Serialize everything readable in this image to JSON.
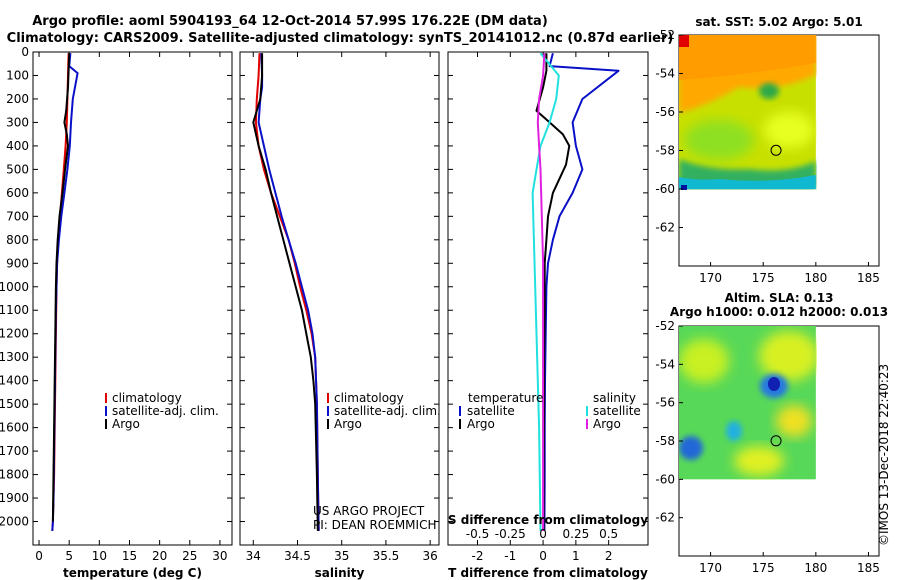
{
  "titles": {
    "line1": "Argo profile: aoml 5904193_64 12-Oct-2014 57.99S 176.22E (DM data)",
    "line2": "Climatology: CARS2009. Satellite-adjusted climatology: synTS_20141012.nc (0.87d earlier)"
  },
  "colors": {
    "climatology": "#e00000",
    "satellite": "#0a10c8",
    "argo": "#000000",
    "salinity_satellite": "#20e0e0",
    "salinity_argo": "#e020e0"
  },
  "chart_data": [
    {
      "type": "line",
      "id": "temperature",
      "xlabel": "temperature (deg C)",
      "ylabel": "",
      "xlim": [
        -1,
        32
      ],
      "ylim": [
        2100,
        0
      ],
      "xticks": [
        "0",
        "5",
        "10",
        "15",
        "20",
        "25",
        "30"
      ],
      "xtick_values": [
        0,
        5,
        10,
        15,
        20,
        25,
        30
      ],
      "yticks": [
        "0",
        "100",
        "200",
        "300",
        "400",
        "500",
        "600",
        "700",
        "800",
        "900",
        "1000",
        "1100",
        "1200",
        "1300",
        "1400",
        "1500",
        "1600",
        "1700",
        "1800",
        "1900",
        "2000"
      ],
      "ytick_values": [
        0,
        100,
        200,
        300,
        400,
        500,
        600,
        700,
        800,
        900,
        1000,
        1100,
        1200,
        1300,
        1400,
        1500,
        1600,
        1700,
        1800,
        1900,
        2000
      ],
      "legend": [
        "climatology",
        "satellite-adj. clim.",
        "Argo"
      ],
      "series": [
        {
          "name": "climatology",
          "color_key": "climatology",
          "x": [
            4.9,
            4.8,
            4.7,
            4.6,
            4.4,
            4.1,
            3.8,
            3.5,
            3.2,
            3.0,
            2.9,
            2.8,
            2.7,
            2.6,
            2.5,
            2.4,
            2.3,
            2.2
          ],
          "y": [
            5,
            100,
            200,
            300,
            400,
            500,
            600,
            700,
            800,
            900,
            1000,
            1200,
            1400,
            1600,
            1800,
            1900,
            2000,
            2040
          ]
        },
        {
          "name": "satellite-adj. clim.",
          "color_key": "satellite",
          "x": [
            5.2,
            5.0,
            6.4,
            5.6,
            5.3,
            5.1,
            4.7,
            4.2,
            3.7,
            3.3,
            3.0,
            2.8,
            2.7,
            2.6,
            2.5,
            2.4,
            2.3,
            2.2
          ],
          "y": [
            5,
            60,
            90,
            200,
            300,
            400,
            500,
            600,
            700,
            800,
            900,
            1100,
            1300,
            1500,
            1700,
            1900,
            2000,
            2040
          ]
        },
        {
          "name": "Argo",
          "color_key": "argo",
          "x": [
            5.0,
            4.9,
            4.8,
            4.5,
            4.2,
            4.6,
            4.8,
            4.4,
            3.9,
            3.4,
            3.1,
            2.9,
            2.8,
            2.7,
            2.6,
            2.5,
            2.4,
            2.3
          ],
          "y": [
            5,
            80,
            150,
            250,
            300,
            350,
            400,
            480,
            600,
            700,
            800,
            900,
            1000,
            1200,
            1400,
            1600,
            1800,
            2000
          ]
        }
      ]
    },
    {
      "type": "line",
      "id": "salinity",
      "xlabel": "salinity",
      "ylabel": "",
      "xlim": [
        33.85,
        36.1
      ],
      "ylim": [
        2100,
        0
      ],
      "xticks": [
        "34",
        "34.5",
        "35",
        "35.5",
        "36"
      ],
      "xtick_values": [
        34,
        34.5,
        35,
        35.5,
        36
      ],
      "legend": [
        "climatology",
        "satellite-adj. clim.",
        "Argo"
      ],
      "series": [
        {
          "name": "climatology",
          "color_key": "climatology",
          "x": [
            34.07,
            34.06,
            34.04,
            34.03,
            34.06,
            34.12,
            34.2,
            34.3,
            34.4,
            34.47,
            34.53,
            34.6,
            34.66,
            34.7,
            34.72,
            34.73,
            34.74
          ],
          "y": [
            5,
            100,
            200,
            300,
            400,
            500,
            600,
            700,
            800,
            900,
            1000,
            1100,
            1200,
            1300,
            1500,
            1800,
            2040
          ]
        },
        {
          "name": "satellite-adj. clim.",
          "color_key": "satellite",
          "x": [
            34.09,
            34.1,
            34.1,
            34.08,
            34.06,
            34.12,
            34.18,
            34.25,
            34.32,
            34.4,
            34.48,
            34.55,
            34.62,
            34.67,
            34.7,
            34.72,
            34.73,
            34.74
          ],
          "y": [
            5,
            100,
            150,
            200,
            300,
            400,
            500,
            600,
            700,
            800,
            900,
            1000,
            1100,
            1200,
            1300,
            1500,
            1800,
            2040
          ]
        },
        {
          "name": "Argo",
          "color_key": "argo",
          "x": [
            34.1,
            34.1,
            34.08,
            34.0,
            34.06,
            34.14,
            34.2,
            34.27,
            34.34,
            34.41,
            34.48,
            34.55,
            34.6,
            34.65,
            34.68,
            34.7,
            34.72,
            34.73
          ],
          "y": [
            5,
            100,
            200,
            300,
            400,
            500,
            600,
            700,
            800,
            900,
            1000,
            1100,
            1200,
            1300,
            1400,
            1500,
            1800,
            2040
          ]
        }
      ],
      "annotations": [
        "US ARGO PROJECT",
        "PI: DEAN ROEMMICH"
      ]
    },
    {
      "type": "line",
      "id": "difference",
      "xlabel": "T difference from climatology",
      "ylabel": "",
      "xlim": [
        -2.9,
        3.2
      ],
      "ylim": [
        2100,
        0
      ],
      "xticks": [
        "-2",
        "-1",
        "0",
        "1",
        "2"
      ],
      "xtick_values": [
        -2,
        -1,
        0,
        1,
        2
      ],
      "top_axis_title": "S difference from climatology",
      "top_xticks": [
        "-0.5",
        "-0.25",
        "0",
        "0.25",
        "0.5"
      ],
      "top_xtick_values": [
        -0.5,
        -0.25,
        0,
        0.25,
        0.5
      ],
      "legend": {
        "temperature_heading": "temperature",
        "salinity_heading": "salinity",
        "temperature": [
          "satellite",
          "Argo"
        ],
        "salinity": [
          "satellite",
          "Argo"
        ]
      },
      "series": [
        {
          "name": "satellite",
          "group": "temperature",
          "axis": "T",
          "color_key": "satellite",
          "x": [
            0.3,
            0.2,
            2.3,
            1.2,
            0.9,
            1.0,
            1.2,
            0.9,
            0.5,
            0.3,
            0.15,
            0.1,
            0.08,
            0.06,
            0.05,
            0.05,
            0.04
          ],
          "y": [
            5,
            60,
            80,
            200,
            300,
            400,
            500,
            600,
            700,
            800,
            900,
            1000,
            1200,
            1400,
            1600,
            1800,
            2040
          ]
        },
        {
          "name": "Argo",
          "group": "temperature",
          "axis": "T",
          "color_key": "argo",
          "x": [
            0.1,
            0.1,
            0.0,
            -0.2,
            0.2,
            0.6,
            0.8,
            0.7,
            0.3,
            0.15,
            0.1,
            0.05,
            0.05,
            0.03,
            0.03,
            0.02,
            0.02
          ],
          "y": [
            5,
            80,
            150,
            250,
            300,
            350,
            400,
            480,
            600,
            700,
            800,
            900,
            1100,
            1300,
            1500,
            1800,
            2040
          ]
        },
        {
          "name": "satellite",
          "group": "salinity",
          "axis": "S",
          "color_key": "salinity_satellite",
          "x": [
            -0.02,
            0.12,
            0.1,
            0.05,
            -0.02,
            -0.05,
            -0.08,
            -0.07,
            -0.06,
            -0.05,
            -0.04,
            -0.03,
            -0.02
          ],
          "y": [
            5,
            100,
            200,
            300,
            400,
            500,
            600,
            800,
            1000,
            1200,
            1400,
            1600,
            2040
          ]
        },
        {
          "name": "Argo",
          "group": "salinity",
          "axis": "S",
          "color_key": "salinity_argo",
          "x": [
            0.01,
            0.0,
            -0.03,
            -0.04,
            -0.03,
            -0.02,
            -0.01,
            0.0,
            0.0,
            0.0,
            0.0
          ],
          "y": [
            5,
            100,
            200,
            300,
            400,
            500,
            700,
            900,
            1200,
            1500,
            2040
          ]
        }
      ]
    },
    {
      "type": "heatmap",
      "id": "sst-map",
      "title": "sat. SST: 5.02 Argo: 5.01",
      "xlim": [
        167,
        186
      ],
      "ylim": [
        -64,
        -52
      ],
      "xticks": [
        "170",
        "175",
        "180",
        "185"
      ],
      "xtick_values": [
        170,
        175,
        180,
        185
      ],
      "yticks": [
        "-52",
        "-54",
        "-56",
        "-58",
        "-60",
        "-62"
      ],
      "ytick_values": [
        -52,
        -54,
        -56,
        -58,
        -60,
        -62
      ],
      "data_extent": {
        "lon": [
          167,
          180
        ],
        "lat": [
          -60,
          -52
        ]
      },
      "marker": {
        "lon": 176.22,
        "lat": -57.99
      }
    },
    {
      "type": "heatmap",
      "id": "sla-map",
      "title": "Altim. SLA: 0.13",
      "subtitle": "Argo h1000: 0.012 h2000: 0.013",
      "xlim": [
        167,
        186
      ],
      "ylim": [
        -64,
        -52
      ],
      "xticks": [
        "170",
        "175",
        "180",
        "185"
      ],
      "xtick_values": [
        170,
        175,
        180,
        185
      ],
      "yticks": [
        "-52",
        "-54",
        "-56",
        "-58",
        "-60",
        "-62"
      ],
      "ytick_values": [
        -52,
        -54,
        -56,
        -58,
        -60,
        -62
      ],
      "data_extent": {
        "lon": [
          167,
          180
        ],
        "lat": [
          -60,
          -52
        ]
      },
      "marker": {
        "lon": 176.22,
        "lat": -57.99
      }
    }
  ],
  "watermark": "©IMOS 13-Dec-2018 22:40:23"
}
